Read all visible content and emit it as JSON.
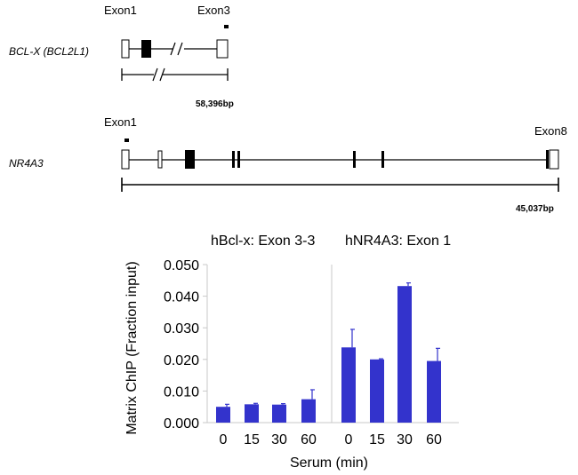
{
  "genes": [
    {
      "name": "BCL-X (BCL2L1)",
      "exon_labels": [
        "Exon1",
        "Exon3"
      ],
      "length_label": "58,396bp"
    },
    {
      "name": "NR4A3",
      "exon_labels": [
        "Exon1",
        "Exon8"
      ],
      "length_label": "45,037bp"
    }
  ],
  "chart_data": {
    "type": "bar",
    "ylabel": "Matrix ChIP (Fraction input)",
    "xlabel": "Serum (min)",
    "ylim": [
      0,
      0.05
    ],
    "y_ticks": [
      "0.000",
      "0.010",
      "0.020",
      "0.030",
      "0.040",
      "0.050"
    ],
    "bar_color": "#3333cc",
    "panels": [
      {
        "title": "hBcl-x: Exon 3-3",
        "categories": [
          "0",
          "15",
          "30",
          "60"
        ],
        "values": [
          0.005,
          0.0058,
          0.0057,
          0.0074
        ],
        "errors": [
          0.0008,
          0.0003,
          0.0003,
          0.003
        ]
      },
      {
        "title": "hNR4A3: Exon 1",
        "categories": [
          "0",
          "15",
          "30",
          "60"
        ],
        "values": [
          0.0238,
          0.02,
          0.0432,
          0.0195
        ],
        "errors": [
          0.0057,
          0.0002,
          0.001,
          0.004
        ]
      }
    ]
  }
}
